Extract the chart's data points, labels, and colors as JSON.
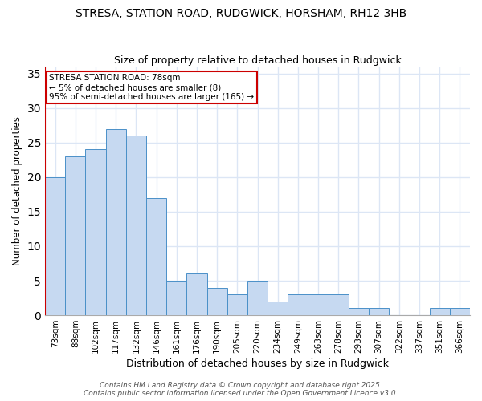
{
  "title1": "STRESA, STATION ROAD, RUDGWICK, HORSHAM, RH12 3HB",
  "title2": "Size of property relative to detached houses in Rudgwick",
  "xlabel": "Distribution of detached houses by size in Rudgwick",
  "ylabel": "Number of detached properties",
  "categories": [
    "73sqm",
    "88sqm",
    "102sqm",
    "117sqm",
    "132sqm",
    "146sqm",
    "161sqm",
    "176sqm",
    "190sqm",
    "205sqm",
    "220sqm",
    "234sqm",
    "249sqm",
    "263sqm",
    "278sqm",
    "293sqm",
    "307sqm",
    "322sqm",
    "337sqm",
    "351sqm",
    "366sqm"
  ],
  "values": [
    20,
    23,
    24,
    27,
    26,
    17,
    5,
    6,
    4,
    3,
    5,
    2,
    3,
    3,
    3,
    1,
    1,
    0,
    0,
    1,
    1
  ],
  "bar_color": "#c6d9f1",
  "bar_edge_color": "#4a90c8",
  "highlight_line_color": "#cc0000",
  "annotation_text": "STRESA STATION ROAD: 78sqm\n← 5% of detached houses are smaller (8)\n95% of semi-detached houses are larger (165) →",
  "annotation_box_color": "#ffffff",
  "annotation_box_edge": "#cc0000",
  "ylim": [
    0,
    36
  ],
  "yticks": [
    0,
    5,
    10,
    15,
    20,
    25,
    30,
    35
  ],
  "footer": "Contains HM Land Registry data © Crown copyright and database right 2025.\nContains public sector information licensed under the Open Government Licence v3.0.",
  "bg_color": "#ffffff",
  "grid_color": "#dce6f5",
  "title1_fontsize": 10,
  "title2_fontsize": 9
}
